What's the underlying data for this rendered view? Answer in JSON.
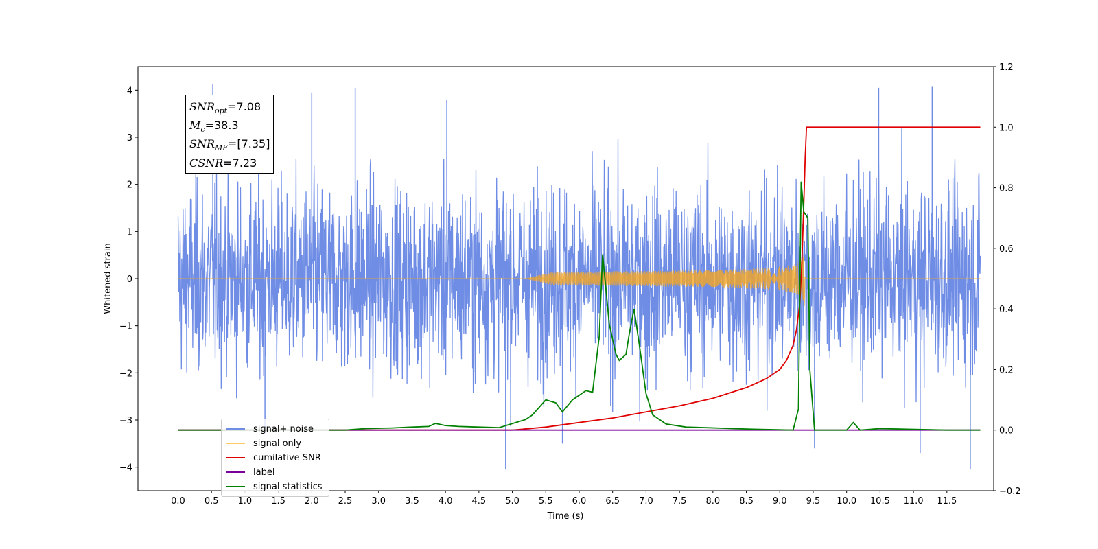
{
  "chart_data": {
    "type": "line",
    "xlabel": "Time (s)",
    "ylabel_left": "Whitened strain",
    "ylabel_right": "",
    "xlim": [
      -0.6,
      12.2
    ],
    "ylim_left": [
      -4.5,
      4.5
    ],
    "ylim_right": [
      -0.2,
      1.2
    ],
    "x_ticks": [
      "0.0",
      "0.5",
      "1.0",
      "1.5",
      "2.0",
      "2.5",
      "3.0",
      "3.5",
      "4.0",
      "4.5",
      "5.0",
      "5.5",
      "6.0",
      "6.5",
      "7.0",
      "7.5",
      "8.0",
      "8.5",
      "9.0",
      "9.5",
      "10.0",
      "10.5",
      "11.0",
      "11.5"
    ],
    "y_ticks_left": [
      "4",
      "3",
      "2",
      "1",
      "0",
      "−1",
      "−2",
      "−3",
      "−4"
    ],
    "y_ticks_right": [
      "1.2",
      "1.0",
      "0.8",
      "0.6",
      "0.4",
      "0.2",
      "0.0",
      "−0.2"
    ],
    "grid": false,
    "legend_position": "bottom-left",
    "annotation": {
      "snr_opt_label": "SNR",
      "snr_opt_sub": "opt",
      "snr_opt_value": "=7.08",
      "mc_label": "M",
      "mc_sub": "c",
      "mc_value": "=38.3",
      "snr_mf_label": "SNR",
      "snr_mf_sub": "MF",
      "snr_mf_value": "=[7.35]",
      "csnr_label": "CSNR",
      "csnr_value": "=7.23"
    },
    "series": [
      {
        "name": "signal+ noise",
        "axis": "left",
        "color": "#6f8de5",
        "description_type": "noise",
        "x_range": [
          0.0,
          12.0
        ],
        "envelope": [
          -2.5,
          2.5
        ],
        "spikes": [
          [
            0.52,
            4.12
          ],
          [
            2.65,
            4.05
          ],
          [
            4.02,
            3.8
          ],
          [
            10.48,
            4.05
          ],
          [
            11.28,
            4.07
          ],
          [
            4.9,
            -4.05
          ],
          [
            11.85,
            -4.05
          ],
          [
            9.52,
            -3.6
          ],
          [
            11.1,
            -3.7
          ],
          [
            2.0,
            3.95
          ],
          [
            1.3,
            -3.3
          ],
          [
            5.75,
            -3.5
          ]
        ]
      },
      {
        "name": "signal only",
        "axis": "left",
        "color": "#f5a623",
        "chirp": {
          "start": 5.2,
          "merger": 9.38,
          "peak_amplitude": 0.8
        }
      },
      {
        "name": "cumilative SNR",
        "axis": "right",
        "color": "#e00000",
        "x": [
          0.0,
          5.0,
          5.5,
          6.0,
          6.5,
          7.0,
          7.5,
          8.0,
          8.5,
          8.8,
          9.0,
          9.1,
          9.2,
          9.25,
          9.3,
          9.33,
          9.36,
          9.38,
          9.4,
          9.42,
          12.0
        ],
        "values": [
          0.0,
          0.0,
          0.01,
          0.025,
          0.04,
          0.06,
          0.08,
          0.105,
          0.14,
          0.17,
          0.2,
          0.23,
          0.28,
          0.33,
          0.42,
          0.55,
          0.75,
          0.9,
          1.0,
          1.0,
          1.0
        ]
      },
      {
        "name": "label",
        "axis": "right",
        "color": "#7b0099",
        "x": [
          0.0,
          12.0
        ],
        "values": [
          0.0,
          0.0
        ]
      },
      {
        "name": "signal statistics",
        "axis": "right",
        "color": "#008000",
        "x": [
          0.0,
          2.5,
          2.8,
          3.2,
          3.5,
          3.75,
          3.85,
          4.0,
          4.2,
          4.5,
          4.8,
          5.2,
          5.3,
          5.5,
          5.65,
          5.75,
          5.9,
          6.0,
          6.1,
          6.2,
          6.3,
          6.35,
          6.45,
          6.55,
          6.6,
          6.7,
          6.75,
          6.82,
          6.9,
          7.0,
          7.1,
          7.3,
          7.6,
          7.9,
          8.3,
          8.6,
          9.2,
          9.28,
          9.32,
          9.36,
          9.42,
          9.45,
          9.52,
          9.6,
          10.0,
          10.1,
          10.2,
          10.5,
          11.5,
          12.0
        ],
        "values": [
          0.0,
          0.0,
          0.005,
          0.007,
          0.01,
          0.012,
          0.022,
          0.015,
          0.012,
          0.01,
          0.008,
          0.035,
          0.05,
          0.1,
          0.09,
          0.06,
          0.1,
          0.115,
          0.13,
          0.125,
          0.31,
          0.58,
          0.35,
          0.25,
          0.23,
          0.25,
          0.32,
          0.4,
          0.28,
          0.12,
          0.05,
          0.02,
          0.01,
          0.008,
          0.005,
          0.003,
          0.0,
          0.07,
          0.82,
          0.72,
          0.7,
          0.2,
          0.0,
          0.0,
          0.0,
          0.025,
          0.0,
          0.005,
          0.0,
          0.0
        ]
      }
    ]
  },
  "legend": {
    "items": [
      {
        "label": "signal+ noise",
        "color": "#6f8de5"
      },
      {
        "label": "signal only",
        "color": "#ffc966"
      },
      {
        "label": "cumilative SNR",
        "color": "#e00000"
      },
      {
        "label": "label",
        "color": "#7b0099"
      },
      {
        "label": "signal statistics",
        "color": "#008000"
      }
    ]
  }
}
